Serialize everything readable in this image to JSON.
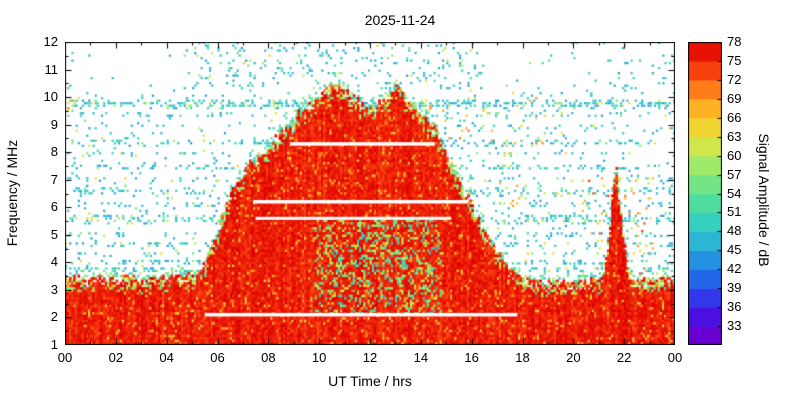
{
  "chart_data": {
    "type": "heatmap",
    "title": "2025-11-24",
    "xlabel": "UT Time / hrs",
    "ylabel": "Frequency / MHz",
    "x_range_hours": [
      0,
      24
    ],
    "x_major_tick_hours": [
      0,
      2,
      4,
      6,
      8,
      10,
      12,
      14,
      16,
      18,
      20,
      22,
      24
    ],
    "x_tick_labels": [
      "00",
      "02",
      "04",
      "06",
      "08",
      "10",
      "12",
      "14",
      "16",
      "18",
      "20",
      "22",
      "00"
    ],
    "y_range_mhz": [
      1,
      12
    ],
    "y_tick_values": [
      12,
      11,
      10,
      9,
      8,
      7,
      6,
      5,
      4,
      3,
      2,
      1
    ],
    "grid": "off",
    "colorbar": {
      "label": "Signal Amplitude / dB",
      "tick_values": [
        33,
        36,
        39,
        42,
        45,
        48,
        51,
        54,
        57,
        60,
        63,
        66,
        69,
        72,
        75,
        78
      ],
      "value_range": [
        30,
        78
      ],
      "block_size_db": 3,
      "colormap_stops": [
        [
          30,
          "#7800c8"
        ],
        [
          33,
          "#5a00dc"
        ],
        [
          36,
          "#3c1ee6"
        ],
        [
          39,
          "#2850ec"
        ],
        [
          42,
          "#1e7ce6"
        ],
        [
          45,
          "#28a5da"
        ],
        [
          48,
          "#2dc8cd"
        ],
        [
          51,
          "#3cd7af"
        ],
        [
          54,
          "#5fe193"
        ],
        [
          57,
          "#87e878"
        ],
        [
          60,
          "#b9ec5a"
        ],
        [
          63,
          "#e6e13c"
        ],
        [
          66,
          "#fac828"
        ],
        [
          69,
          "#ff9b1e"
        ],
        [
          72,
          "#ff5f14"
        ],
        [
          75,
          "#f02408"
        ],
        [
          78,
          "#dd0000"
        ]
      ]
    },
    "features": {
      "description": "HF spectrum monitor: strong broadband signal 1-3.5 MHz all 24 h; daytime echo region rising to ~10.5 MHz between 06-18 UT with twin peaks near 10.5 and 13 UT; narrow evening enhancement near 21.7 UT reaching ~7.6 MHz; banded cyan background noise; white horizontal interference-free gaps.",
      "signal_db_range": [
        73,
        78
      ],
      "echo_top_mhz_points": [
        [
          0,
          3.45
        ],
        [
          0.5,
          3.5
        ],
        [
          1,
          3.4
        ],
        [
          1.5,
          3.5
        ],
        [
          2,
          3.45
        ],
        [
          2.5,
          3.5
        ],
        [
          3,
          3.4
        ],
        [
          3.5,
          3.45
        ],
        [
          4,
          3.5
        ],
        [
          4.5,
          3.5
        ],
        [
          5,
          3.55
        ],
        [
          5.3,
          3.7
        ],
        [
          5.6,
          4.1
        ],
        [
          6,
          5.0
        ],
        [
          6.3,
          5.9
        ],
        [
          6.6,
          6.6
        ],
        [
          7,
          7.1
        ],
        [
          7.3,
          7.9
        ],
        [
          7.5,
          7.6
        ],
        [
          7.8,
          8.0
        ],
        [
          8,
          8.1
        ],
        [
          8.3,
          8.5
        ],
        [
          8.6,
          8.8
        ],
        [
          9,
          9.2
        ],
        [
          9.3,
          9.5
        ],
        [
          9.6,
          9.7
        ],
        [
          10,
          10.1
        ],
        [
          10.3,
          10.4
        ],
        [
          10.6,
          10.5
        ],
        [
          10.9,
          10.3
        ],
        [
          11.2,
          10.1
        ],
        [
          11.5,
          9.9
        ],
        [
          11.8,
          9.7
        ],
        [
          12,
          9.6
        ],
        [
          12.3,
          9.7
        ],
        [
          12.6,
          9.9
        ],
        [
          12.9,
          10.3
        ],
        [
          13.1,
          10.4
        ],
        [
          13.3,
          10.1
        ],
        [
          13.6,
          9.9
        ],
        [
          13.9,
          9.5
        ],
        [
          14.2,
          9.3
        ],
        [
          14.5,
          8.9
        ],
        [
          14.8,
          8.4
        ],
        [
          15,
          8.0
        ],
        [
          15.3,
          7.4
        ],
        [
          15.6,
          6.8
        ],
        [
          16,
          6.1
        ],
        [
          16.3,
          5.6
        ],
        [
          16.6,
          5.0
        ],
        [
          17,
          4.4
        ],
        [
          17.3,
          4.0
        ],
        [
          17.6,
          3.7
        ],
        [
          18,
          3.45
        ],
        [
          18.5,
          3.35
        ],
        [
          19,
          3.3
        ],
        [
          20,
          3.3
        ],
        [
          20.5,
          3.35
        ],
        [
          21,
          3.4
        ],
        [
          21.5,
          3.45
        ],
        [
          22,
          3.4
        ],
        [
          22.5,
          3.35
        ],
        [
          23,
          3.4
        ],
        [
          23.5,
          3.45
        ],
        [
          24,
          3.45
        ]
      ],
      "evening_spike_top_mhz_points": [
        [
          21.15,
          3.5
        ],
        [
          21.35,
          4.6
        ],
        [
          21.5,
          5.8
        ],
        [
          21.6,
          7.0
        ],
        [
          21.68,
          7.6
        ],
        [
          21.75,
          7.0
        ],
        [
          21.85,
          6.0
        ],
        [
          21.95,
          5.0
        ],
        [
          22.1,
          4.2
        ],
        [
          22.25,
          3.5
        ]
      ],
      "white_gap_lines": [
        {
          "f_mhz": 8.3,
          "t_start": 8.85,
          "t_end": 14.55,
          "lw": 3.5
        },
        {
          "f_mhz": 6.2,
          "t_start": 7.4,
          "t_end": 15.85,
          "lw": 3.5
        },
        {
          "f_mhz": 5.6,
          "t_start": 7.5,
          "t_end": 15.2,
          "lw": 3.0
        },
        {
          "f_mhz": 2.1,
          "t_start": 5.5,
          "t_end": 17.8,
          "lw": 3.5
        }
      ],
      "base_noise_density": 0.03,
      "upper_noise_density_above_10mhz": 0.012,
      "noise_bands_f_hw_density": [
        [
          9.75,
          0.2,
          0.5
        ],
        [
          9.35,
          0.12,
          0.18
        ],
        [
          8.9,
          0.1,
          0.12
        ],
        [
          8.35,
          0.15,
          0.3
        ],
        [
          7.95,
          0.1,
          0.15
        ],
        [
          7.45,
          0.12,
          0.25
        ],
        [
          7.0,
          0.1,
          0.12
        ],
        [
          6.55,
          0.18,
          0.3
        ],
        [
          6.1,
          0.12,
          0.2
        ],
        [
          5.55,
          0.25,
          0.32
        ],
        [
          5.0,
          0.12,
          0.18
        ],
        [
          4.65,
          0.12,
          0.28
        ],
        [
          4.3,
          0.1,
          0.2
        ],
        [
          4.0,
          0.12,
          0.3
        ],
        [
          3.75,
          0.1,
          0.3
        ]
      ],
      "extra_scatter_boxes": [
        {
          "t": [
            5,
            16.5
          ],
          "f": [
            10.3,
            12
          ],
          "density": 0.08,
          "db": [
            44,
            52
          ]
        },
        {
          "t": [
            21.3,
            24
          ],
          "f": [
            9.8,
            11.6
          ],
          "density": 0.05,
          "db": [
            44,
            52
          ]
        }
      ],
      "orange_patches": [
        {
          "t": [
            14.2,
            19
          ],
          "f": [
            8.2,
            10.3
          ],
          "density": 0.022,
          "db": [
            62,
            72
          ]
        },
        {
          "t": [
            20.3,
            23.2
          ],
          "f": [
            3.5,
            7.3
          ],
          "density": 0.045,
          "db": [
            58,
            75
          ]
        },
        {
          "t": [
            15.8,
            18.2
          ],
          "f": [
            5.8,
            7.2
          ],
          "density": 0.03,
          "db": [
            58,
            70
          ]
        },
        {
          "t": [
            0,
            0.8
          ],
          "f": [
            9.5,
            10.1
          ],
          "density": 0.08,
          "db": [
            60,
            72
          ]
        }
      ],
      "interior_mottle": {
        "t": [
          9.8,
          14.8
        ],
        "f": [
          2.1,
          5.6
        ],
        "density": 0.28,
        "db": [
          48,
          64
        ]
      },
      "edge_fringe": {
        "width_mhz": 0.35,
        "density": 0.5,
        "db": [
          46,
          60
        ]
      }
    }
  }
}
